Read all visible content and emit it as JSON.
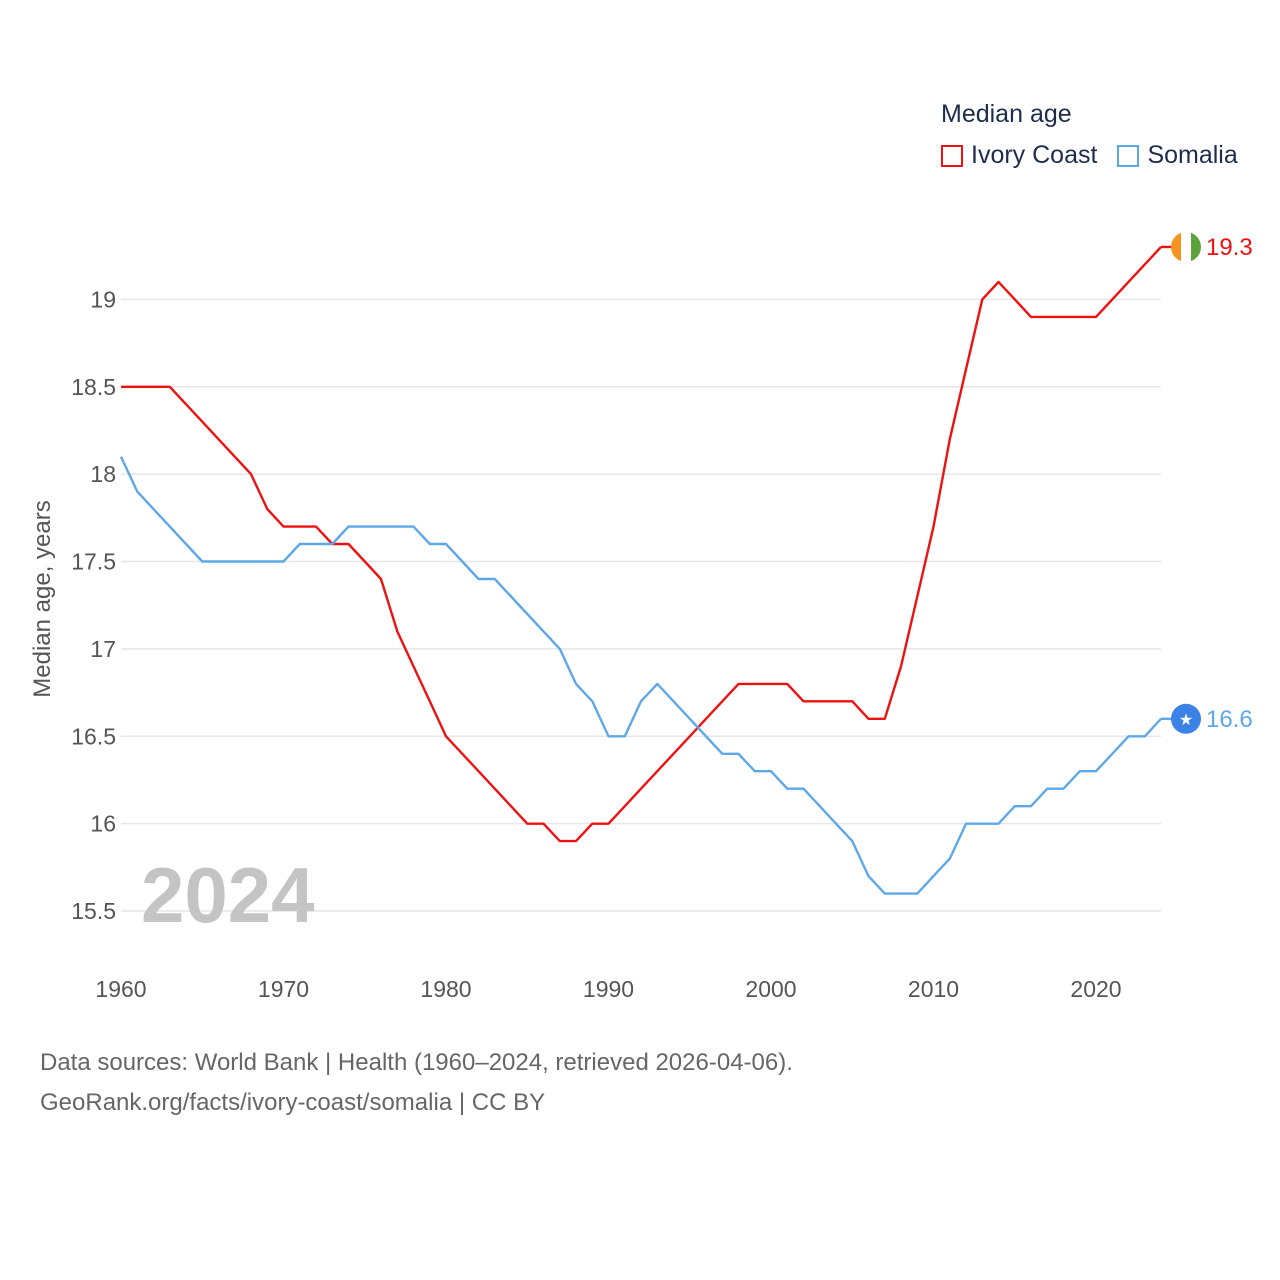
{
  "legend": {
    "title": "Median age",
    "items": [
      {
        "name": "Ivory Coast",
        "color": "#ee1111"
      },
      {
        "name": "Somalia",
        "color": "#5ea8ea"
      }
    ]
  },
  "footer": {
    "line1": "Data sources: World Bank | Health (1960–2024, retrieved 2026-04-06).",
    "line2": "GeoRank.org/facts/ivory-coast/somalia | CC BY"
  },
  "chart_data": {
    "type": "line",
    "title": "Median age",
    "xlabel": "",
    "ylabel": "Median age, years",
    "year_label": "2024",
    "xlim": [
      1960,
      2024
    ],
    "ylim": [
      15.3,
      19.5
    ],
    "xticks": [
      1960,
      1970,
      1980,
      1990,
      2000,
      2010,
      2020
    ],
    "yticks": [
      15.5,
      16,
      16.5,
      17,
      17.5,
      18,
      18.5,
      19
    ],
    "ytick_labels": [
      "15.5",
      "16",
      "16.5",
      "17",
      "17.5",
      "18",
      "18.5",
      "19"
    ],
    "grid": true,
    "legend_position": "top-right",
    "x": [
      1960,
      1961,
      1962,
      1963,
      1964,
      1965,
      1966,
      1967,
      1968,
      1969,
      1970,
      1971,
      1972,
      1973,
      1974,
      1975,
      1976,
      1977,
      1978,
      1979,
      1980,
      1981,
      1982,
      1983,
      1984,
      1985,
      1986,
      1987,
      1988,
      1989,
      1990,
      1991,
      1992,
      1993,
      1994,
      1995,
      1996,
      1997,
      1998,
      1999,
      2000,
      2001,
      2002,
      2003,
      2004,
      2005,
      2006,
      2007,
      2008,
      2009,
      2010,
      2011,
      2012,
      2013,
      2014,
      2015,
      2016,
      2017,
      2018,
      2019,
      2020,
      2021,
      2022,
      2023,
      2024
    ],
    "series": [
      {
        "name": "Ivory Coast",
        "color": "#ee1111",
        "end_label": "19.3",
        "values": [
          18.5,
          18.5,
          18.5,
          18.5,
          18.4,
          18.3,
          18.2,
          18.1,
          18.0,
          17.8,
          17.7,
          17.7,
          17.7,
          17.6,
          17.6,
          17.5,
          17.4,
          17.1,
          16.9,
          16.7,
          16.5,
          16.4,
          16.3,
          16.2,
          16.1,
          16.0,
          16.0,
          15.9,
          15.9,
          16.0,
          16.0,
          16.1,
          16.2,
          16.3,
          16.4,
          16.5,
          16.6,
          16.7,
          16.8,
          16.8,
          16.8,
          16.8,
          16.7,
          16.7,
          16.7,
          16.7,
          16.6,
          16.6,
          16.9,
          17.3,
          17.7,
          18.2,
          18.6,
          19.0,
          19.1,
          19.0,
          18.9,
          18.9,
          18.9,
          18.9,
          18.9,
          19.0,
          19.1,
          19.2,
          19.3
        ]
      },
      {
        "name": "Somalia",
        "color": "#5ea8ea",
        "end_label": "16.6",
        "values": [
          18.1,
          17.9,
          17.8,
          17.7,
          17.6,
          17.5,
          17.5,
          17.5,
          17.5,
          17.5,
          17.5,
          17.6,
          17.6,
          17.6,
          17.7,
          17.7,
          17.7,
          17.7,
          17.7,
          17.6,
          17.6,
          17.5,
          17.4,
          17.4,
          17.3,
          17.2,
          17.1,
          17.0,
          16.8,
          16.7,
          16.5,
          16.5,
          16.7,
          16.8,
          16.7,
          16.6,
          16.5,
          16.4,
          16.4,
          16.3,
          16.3,
          16.2,
          16.2,
          16.1,
          16.0,
          15.9,
          15.7,
          15.6,
          15.6,
          15.6,
          15.7,
          15.8,
          16.0,
          16.0,
          16.0,
          16.1,
          16.1,
          16.2,
          16.2,
          16.3,
          16.3,
          16.4,
          16.5,
          16.5,
          16.6
        ]
      }
    ]
  }
}
